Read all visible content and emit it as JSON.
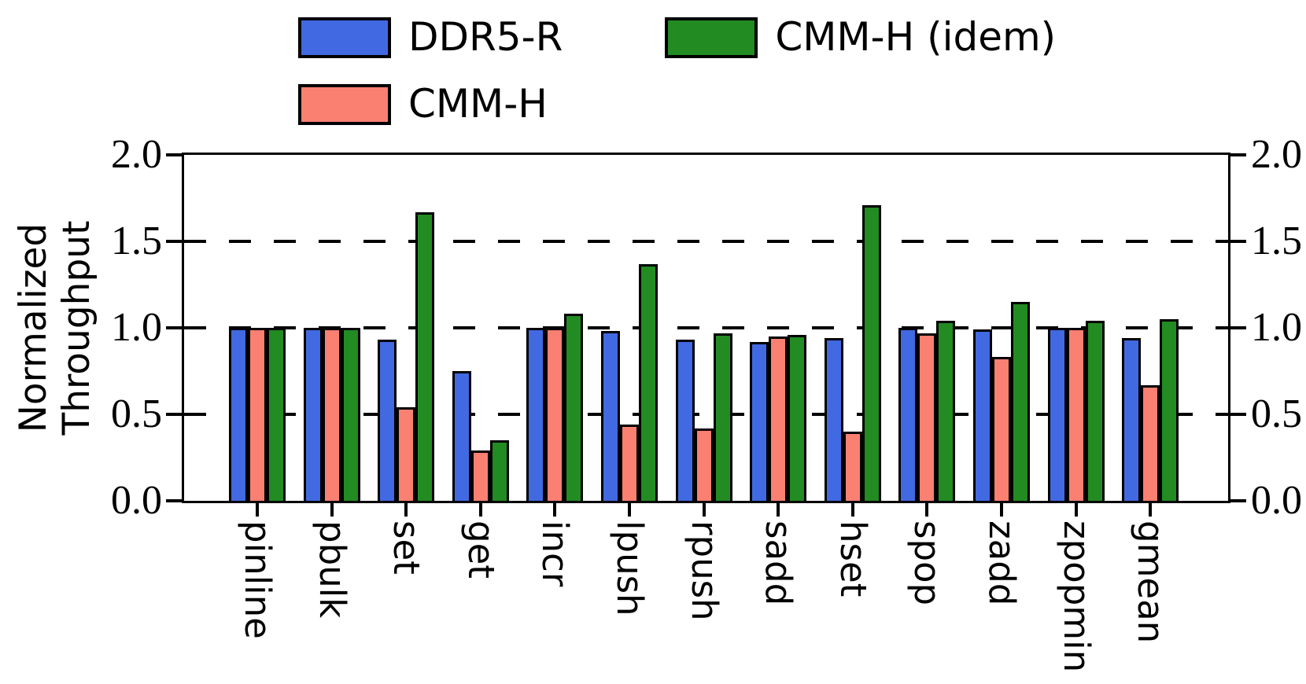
{
  "chart_data": {
    "type": "bar",
    "title": "",
    "ylabel_lines": [
      "Normalized",
      "Throughput"
    ],
    "categories": [
      "pinline",
      "pbulk",
      "set",
      "get",
      "incr",
      "lpush",
      "rpush",
      "sadd",
      "hset",
      "spop",
      "zadd",
      "zpopmin",
      "gmean"
    ],
    "series": [
      {
        "name": "DDR5-R",
        "color": "#4169E1",
        "values": [
          1.0,
          1.0,
          0.93,
          0.75,
          1.0,
          0.98,
          0.93,
          0.92,
          0.94,
          1.0,
          0.99,
          1.0,
          0.94
        ]
      },
      {
        "name": "CMM-H",
        "color": "#FA8072",
        "values": [
          1.0,
          1.0,
          0.54,
          0.29,
          1.0,
          0.44,
          0.42,
          0.95,
          0.4,
          0.97,
          0.83,
          1.0,
          0.67
        ]
      },
      {
        "name": "CMM-H (idem)",
        "color": "#228B22",
        "values": [
          1.0,
          1.0,
          1.67,
          0.35,
          1.08,
          1.37,
          0.97,
          0.96,
          1.71,
          1.04,
          1.15,
          1.04,
          1.05
        ]
      }
    ],
    "ylim": [
      0.0,
      2.0
    ],
    "yticks": [
      {
        "value": 0.0,
        "label": "0.0"
      },
      {
        "value": 0.5,
        "label": "0.5"
      },
      {
        "value": 1.0,
        "label": "1.0"
      },
      {
        "value": 1.5,
        "label": "1.5"
      },
      {
        "value": 2.0,
        "label": "2.0"
      }
    ],
    "right_axis_labels": [
      "0.0",
      "0.5",
      "1.0",
      "1.5",
      "2.0"
    ],
    "gridlines": [
      0.5,
      1.0,
      1.5
    ],
    "grid_style": "dashed",
    "legend_position": "top",
    "bar_edge_color": "#000000"
  }
}
